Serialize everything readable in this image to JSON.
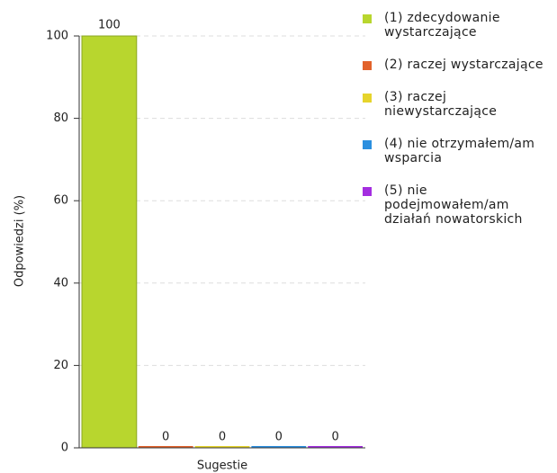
{
  "chart_data": {
    "type": "bar",
    "categories": [
      "Sugestie"
    ],
    "series": [
      {
        "name": "(1) zdecydowanie wystarczające",
        "color": "#b8d62e",
        "values": [
          100
        ]
      },
      {
        "name": "(2) raczej wystarczające",
        "color": "#e2622b",
        "values": [
          0
        ]
      },
      {
        "name": "(3) raczej niewystarczające",
        "color": "#e6d42c",
        "values": [
          0
        ]
      },
      {
        "name": "(4) nie otrzymałem/am wsparcia",
        "color": "#2b8fdf",
        "values": [
          0
        ]
      },
      {
        "name": "(5) nie podejmowałem/am działań nowatorskich",
        "color": "#a42ee0",
        "values": [
          0
        ]
      }
    ],
    "y_label": "Odpowiedzi (%)",
    "ylim": [
      0,
      100
    ],
    "yticks": [
      0,
      20,
      40,
      60,
      80,
      100
    ],
    "grid": true,
    "legend": "right"
  }
}
